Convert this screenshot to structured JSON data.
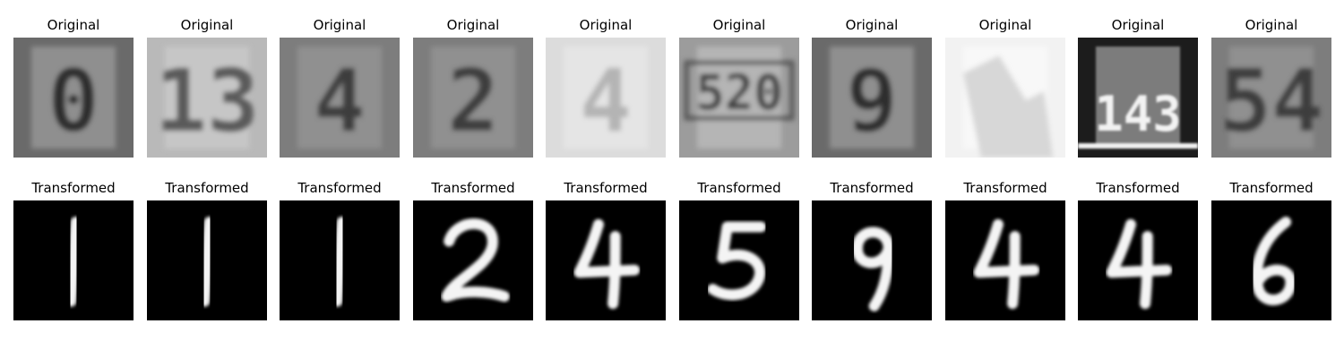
{
  "labels": {
    "top": "Original",
    "bottom": "Transformed"
  },
  "pairs": [
    {
      "original_text": "0",
      "original_tone": "dark",
      "transformed_digit": "1"
    },
    {
      "original_text": "13",
      "original_tone": "light",
      "transformed_digit": "1"
    },
    {
      "original_text": "4",
      "original_tone": "mid",
      "transformed_digit": "1"
    },
    {
      "original_text": "2",
      "original_tone": "mid",
      "transformed_digit": "2"
    },
    {
      "original_text": "4",
      "original_tone": "pale",
      "transformed_digit": "4"
    },
    {
      "original_text": "520",
      "original_tone": "framed",
      "transformed_digit": "5"
    },
    {
      "original_text": "9",
      "original_tone": "dark",
      "transformed_digit": "9"
    },
    {
      "original_text": "",
      "original_tone": "white",
      "transformed_digit": "4"
    },
    {
      "original_text": "143",
      "original_tone": "contrast",
      "transformed_digit": "4"
    },
    {
      "original_text": "54",
      "original_tone": "mid",
      "transformed_digit": "6"
    }
  ]
}
